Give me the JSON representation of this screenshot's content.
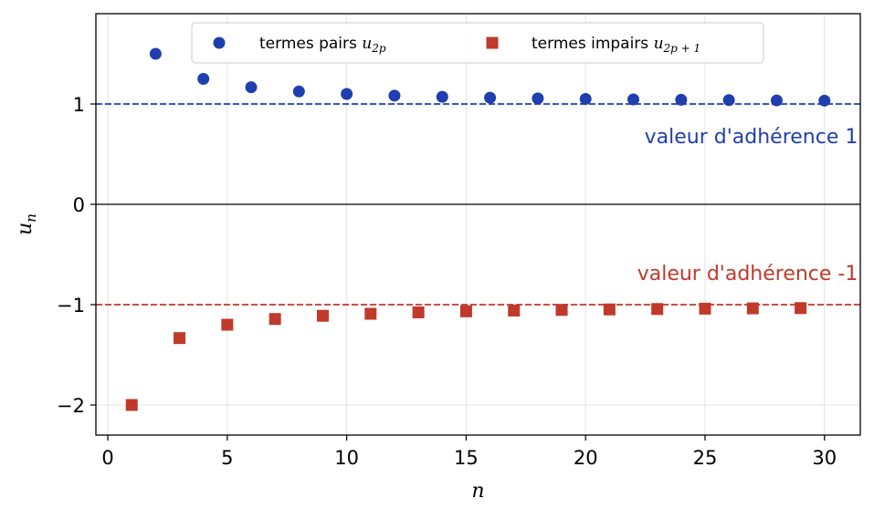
{
  "chart_data": {
    "type": "scatter",
    "xlabel": "n",
    "ylabel": "u",
    "ylabel_sub": "n",
    "xlim": [
      -0.5,
      31.5
    ],
    "ylim": [
      -2.3,
      1.9
    ],
    "xticks": [
      0,
      5,
      10,
      15,
      20,
      25,
      30
    ],
    "xtick_labels": [
      "0",
      "5",
      "10",
      "15",
      "20",
      "25",
      "30"
    ],
    "yticks": [
      -2,
      -1,
      0,
      1
    ],
    "ytick_labels": [
      "−2",
      "−1",
      "0",
      "1"
    ],
    "grid": true,
    "legend_position": "top-center",
    "series": [
      {
        "name": "termes pairs",
        "name_math": "u",
        "name_sub": "2p",
        "marker": "circle",
        "color": "#1f3fae",
        "x": [
          2,
          4,
          6,
          8,
          10,
          12,
          14,
          16,
          18,
          20,
          22,
          24,
          26,
          28,
          30
        ],
        "y": [
          1.5,
          1.25,
          1.1667,
          1.125,
          1.1,
          1.0833,
          1.0714,
          1.0625,
          1.0556,
          1.05,
          1.0455,
          1.0417,
          1.0385,
          1.0357,
          1.0333
        ]
      },
      {
        "name": "termes impairs",
        "name_math": "u",
        "name_sub": "2p + 1",
        "marker": "square",
        "color": "#c0392b",
        "x": [
          1,
          3,
          5,
          7,
          9,
          11,
          13,
          15,
          17,
          19,
          21,
          23,
          25,
          27,
          29
        ],
        "y": [
          -2,
          -1.3333,
          -1.2,
          -1.1429,
          -1.1111,
          -1.0909,
          -1.0769,
          -1.0667,
          -1.0588,
          -1.0526,
          -1.0476,
          -1.0435,
          -1.04,
          -1.037,
          -1.0345
        ]
      }
    ],
    "reference_lines": [
      {
        "y": 1,
        "color": "#1f3fae",
        "style": "dashed"
      },
      {
        "y": -1,
        "color": "#c0392b",
        "style": "dashed"
      },
      {
        "y": 0,
        "color": "#000000",
        "style": "solid"
      }
    ],
    "annotations": [
      {
        "text": "valeur d'adhérence 1",
        "x": 31.4,
        "y": 0.68,
        "color": "#1f3fae",
        "anchor": "end"
      },
      {
        "text": "valeur d'adhérence -1",
        "x": 31.4,
        "y": -0.68,
        "color": "#c0392b",
        "anchor": "end"
      }
    ]
  }
}
